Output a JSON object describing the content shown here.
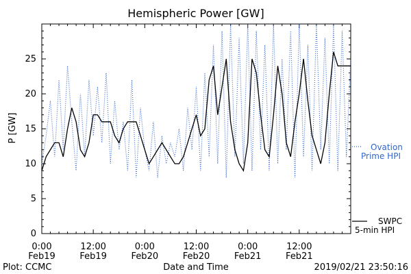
{
  "chart_data": {
    "type": "line",
    "title": "Hemispheric Power [GW]",
    "xlabel": "Date and Time",
    "ylabel": "P [GW]",
    "xlim_hours": [
      0,
      72
    ],
    "ylim": [
      0,
      30
    ],
    "yticks": [
      0,
      5,
      10,
      15,
      20,
      25
    ],
    "xticks": [
      {
        "h": 0,
        "time": "0:00",
        "date": "Feb19"
      },
      {
        "h": 12,
        "time": "12:00",
        "date": "Feb19"
      },
      {
        "h": 24,
        "time": "0:00",
        "date": "Feb20"
      },
      {
        "h": 36,
        "time": "12:00",
        "date": "Feb20"
      },
      {
        "h": 48,
        "time": "0:00",
        "date": "Feb21"
      },
      {
        "h": 60,
        "time": "12:00",
        "date": "Feb21"
      }
    ],
    "series": [
      {
        "name": "SWPC 5-min HPI",
        "color": "#000000",
        "style": "solid",
        "x": [
          0,
          1,
          2,
          3,
          4,
          5,
          6,
          7,
          8,
          9,
          10,
          11,
          12,
          13,
          14,
          15,
          16,
          17,
          18,
          19,
          20,
          21,
          22,
          23,
          24,
          25,
          26,
          27,
          28,
          29,
          30,
          31,
          32,
          33,
          34,
          35,
          36,
          37,
          38,
          39,
          40,
          41,
          42,
          43,
          44,
          45,
          46,
          47,
          48,
          49,
          50,
          51,
          52,
          53,
          54,
          55,
          56,
          57,
          58,
          59,
          60,
          61,
          62,
          63,
          64,
          65,
          66,
          67,
          68,
          69,
          70,
          71,
          72
        ],
        "y": [
          9,
          11,
          12,
          13,
          13,
          11,
          15,
          18,
          16,
          12,
          11,
          13,
          17,
          17,
          16,
          16,
          16,
          14,
          13,
          15,
          16,
          16,
          16,
          14,
          12,
          10,
          11,
          12,
          13,
          12,
          11,
          10,
          10,
          11,
          13,
          15,
          17,
          14,
          15,
          22,
          24,
          17,
          21,
          25,
          16,
          12,
          10,
          9,
          13,
          25,
          23,
          17,
          12,
          11,
          17,
          24,
          20,
          13,
          11,
          16,
          20,
          25,
          19,
          14,
          12,
          10,
          13,
          20,
          26,
          24,
          24,
          24,
          24
        ]
      },
      {
        "name": "Ovation Prime HPI",
        "color": "#3366cc",
        "style": "dotted",
        "x": [
          0,
          1,
          2,
          3,
          4,
          5,
          6,
          7,
          8,
          9,
          10,
          11,
          12,
          13,
          14,
          15,
          16,
          17,
          18,
          19,
          20,
          21,
          22,
          23,
          24,
          25,
          26,
          27,
          28,
          29,
          30,
          31,
          32,
          33,
          34,
          35,
          36,
          37,
          38,
          39,
          40,
          41,
          42,
          43,
          44,
          45,
          46,
          47,
          48,
          49,
          50,
          51,
          52,
          53,
          54,
          55,
          56,
          57,
          58,
          59,
          60,
          61,
          62,
          63,
          64,
          65,
          66,
          67,
          68,
          69,
          70,
          71,
          72
        ],
        "y": [
          10,
          14,
          19,
          11,
          22,
          12,
          24,
          16,
          9,
          20,
          11,
          22,
          14,
          21,
          13,
          23,
          10,
          19,
          12,
          16,
          9,
          22,
          8,
          18,
          12,
          9,
          16,
          8,
          14,
          10,
          13,
          11,
          15,
          9,
          18,
          12,
          21,
          9,
          23,
          11,
          27,
          10,
          29,
          8,
          30,
          11,
          28,
          10,
          30,
          9,
          29,
          12,
          27,
          9,
          30,
          10,
          25,
          12,
          29,
          8,
          30,
          11,
          27,
          9,
          30,
          12,
          28,
          10,
          30,
          9,
          29,
          11,
          25
        ]
      }
    ],
    "legend": {
      "blue_line1": "Ovation",
      "blue_line2": "Prime HPI",
      "black_line1": "SWPC",
      "black_line2": "5-min HPI"
    }
  },
  "footer": {
    "plot_by": "Plot: CCMC",
    "timestamp": "2019/02/21  23:50:16"
  }
}
